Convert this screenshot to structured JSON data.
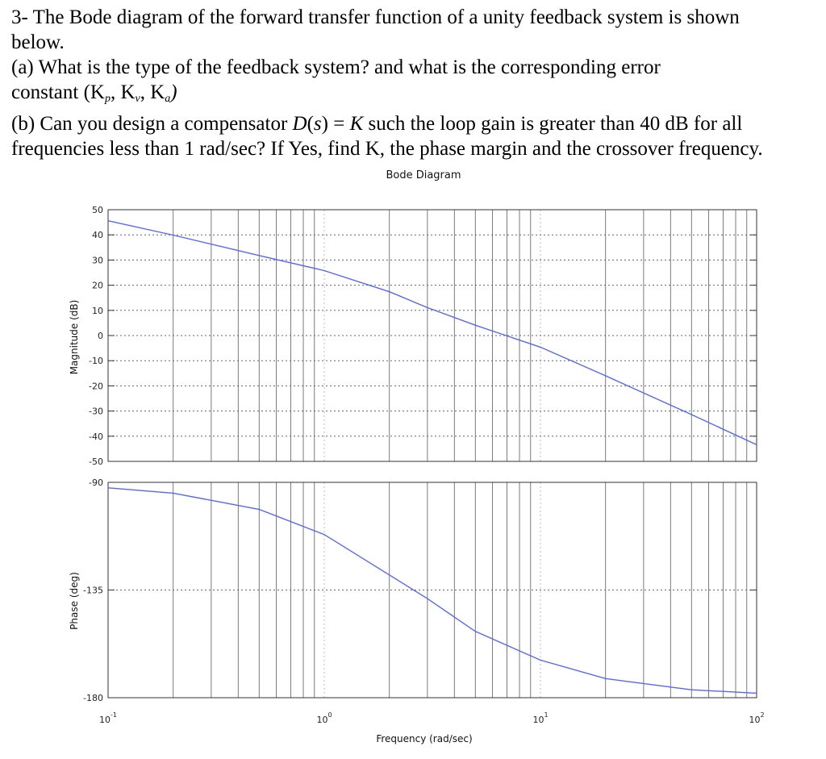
{
  "question": {
    "line1": "3- The Bode diagram of the forward transfer function of a unity feedback system is shown",
    "line2": "below.",
    "line3": "(a) What is the type of the feedback system? and what is the corresponding error",
    "line4_text": "constant  (",
    "line4_kp": "K",
    "line4_kp_sub": "p",
    "line4_kv": "K",
    "line4_kv_sub": "v",
    "line4_ka": "K",
    "line4_ka_sub": "a",
    "line4_close": ")",
    "line5_a": "(b) Can you design a compensator ",
    "line5_ds": "D",
    "line5_s": "s",
    "line5_eq": " = ",
    "line5_K": "K",
    "line5_b": " such the loop gain is greater than 40 dB for all",
    "line6": "frequencies less than 1 rad/sec? If Yes, find K, the phase margin and the crossover frequency."
  },
  "chart_data": {
    "type": "line",
    "title": "Bode Diagram",
    "xlabel": "Frequency  (rad/sec)",
    "xscale": "log",
    "xlim": [
      0.1,
      100
    ],
    "x_tick_labels": [
      {
        "base": "10",
        "exp": "-1",
        "value": 0.1
      },
      {
        "base": "10",
        "exp": "0",
        "value": 1
      },
      {
        "base": "10",
        "exp": "1",
        "value": 10
      },
      {
        "base": "10",
        "exp": "2",
        "value": 100
      }
    ],
    "grid": true,
    "line_color": "#5566ff",
    "panels": [
      {
        "name": "magnitude",
        "ylabel": "Magnitude (dB)",
        "ylim": [
          -50,
          50
        ],
        "yticks": [
          50,
          40,
          30,
          20,
          10,
          0,
          -10,
          -20,
          -30,
          -40,
          -50
        ],
        "x": [
          0.1,
          0.2,
          0.5,
          1,
          2,
          3,
          5,
          10,
          20,
          50,
          100
        ],
        "y": [
          45.6,
          39.9,
          31.8,
          25.8,
          17.4,
          11.1,
          4.1,
          -4.6,
          -16.0,
          -31.4,
          -43.4
        ]
      },
      {
        "name": "phase",
        "ylabel": "Phase (deg)",
        "ylim": [
          -180,
          -90
        ],
        "yticks": [
          -90,
          -135,
          -180
        ],
        "x": [
          0.1,
          0.2,
          0.5,
          1,
          2,
          3,
          5,
          10,
          20,
          50,
          100
        ],
        "y": [
          -92.3,
          -94.5,
          -101.3,
          -111.8,
          -128.7,
          -138.6,
          -152.3,
          -164.3,
          -172.0,
          -176.7,
          -178.1
        ]
      }
    ]
  }
}
